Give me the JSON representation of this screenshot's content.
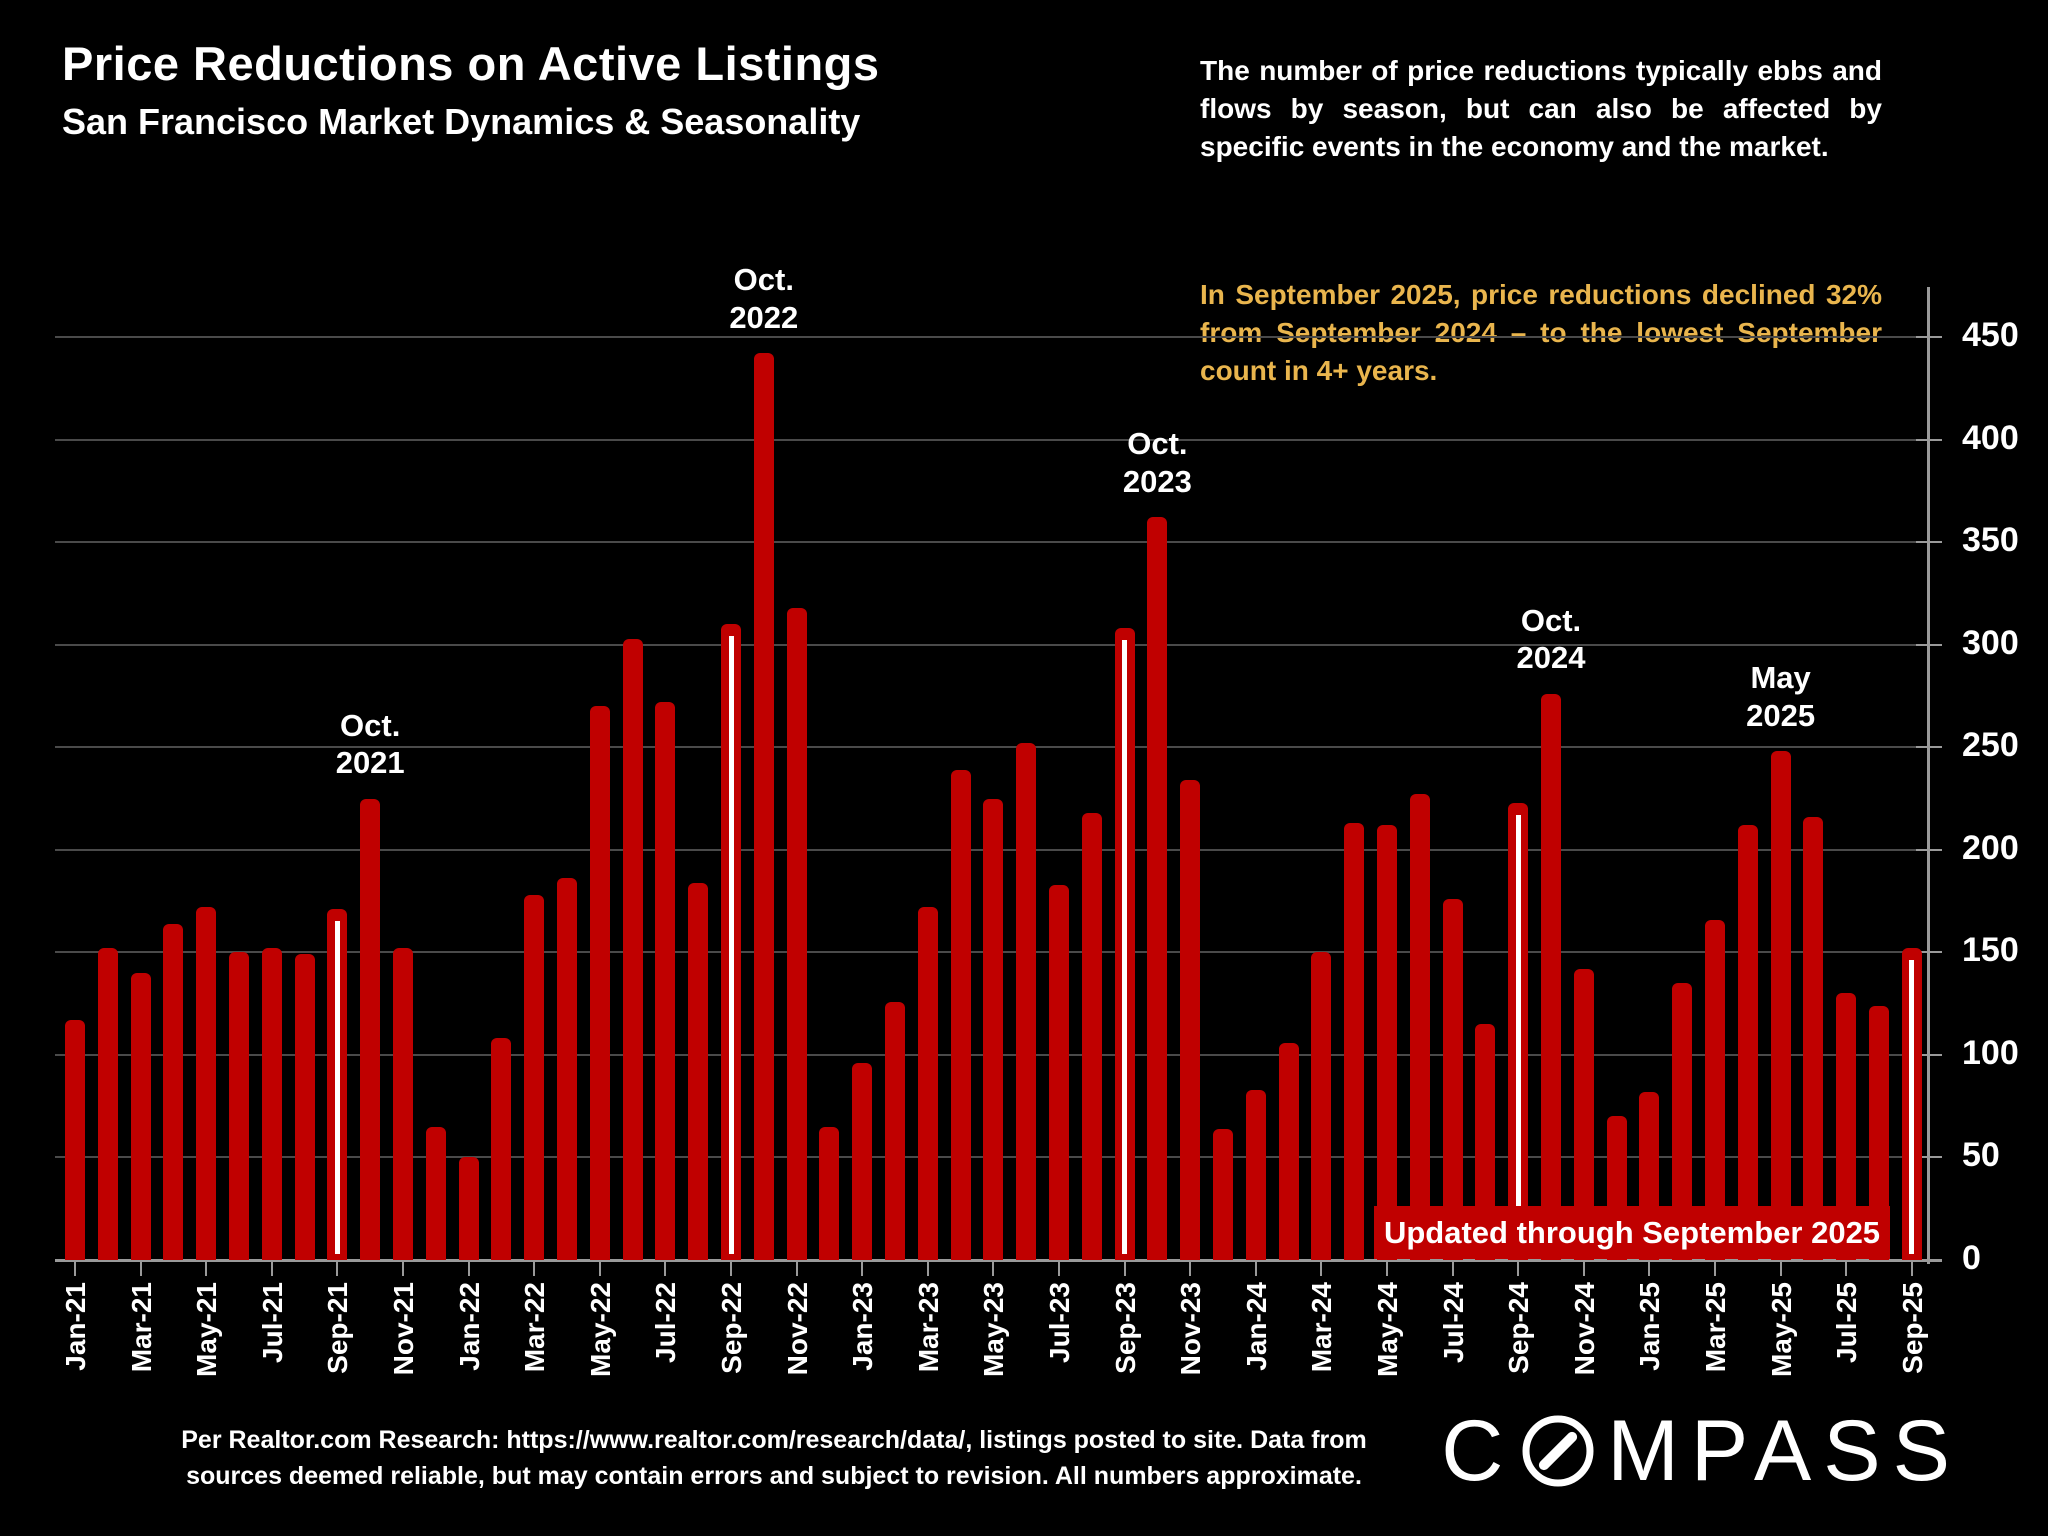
{
  "header": {
    "title": "Price Reductions on Active Listings",
    "subtitle": "San Francisco Market Dynamics & Seasonality"
  },
  "commentary": {
    "white": "The number of price reductions typically ebbs and flows by season, but can also be affected by specific events in the economy and the market.",
    "gold": "In September 2025, price reductions declined 32% from September 2024 – to the lowest September count in 4+ years."
  },
  "banner": {
    "label": "Updated through September 2025"
  },
  "footer": {
    "line1": "Per Realtor.com Research:  https://www.realtor.com/research/data/, listings posted to site. Data from",
    "line2": "sources deemed reliable, but may contain errors and subject to revision. All numbers approximate."
  },
  "logo": {
    "first": "C",
    "rest": "MPASS"
  },
  "colors": {
    "background": "#000000",
    "bar": "#C00000",
    "highlight_line": "#FFFFFF",
    "gold_text": "#E9B54D",
    "grid": "#4a4a4a",
    "axis": "#9a9a9a",
    "text": "#FFFFFF"
  },
  "chart_data": {
    "type": "bar",
    "title": "Price Reductions on Active Listings",
    "xlabel": "",
    "ylabel": "",
    "ylim": [
      0,
      450
    ],
    "ytick_step": 50,
    "xlabel_every": 2,
    "grid": true,
    "legend": "none",
    "bar_color": "#C00000",
    "categories": [
      "Jan-21",
      "Feb-21",
      "Mar-21",
      "Apr-21",
      "May-21",
      "Jun-21",
      "Jul-21",
      "Aug-21",
      "Sep-21",
      "Oct-21",
      "Nov-21",
      "Dec-21",
      "Jan-22",
      "Feb-22",
      "Mar-22",
      "Apr-22",
      "May-22",
      "Jun-22",
      "Jul-22",
      "Aug-22",
      "Sep-22",
      "Oct-22",
      "Nov-22",
      "Dec-22",
      "Jan-23",
      "Feb-23",
      "Mar-23",
      "Apr-23",
      "May-23",
      "Jun-23",
      "Jul-23",
      "Aug-23",
      "Sep-23",
      "Oct-23",
      "Nov-23",
      "Dec-23",
      "Jan-24",
      "Feb-24",
      "Mar-24",
      "Apr-24",
      "May-24",
      "Jun-24",
      "Jul-24",
      "Aug-24",
      "Sep-24",
      "Oct-24",
      "Nov-24",
      "Dec-24",
      "Jan-25",
      "Feb-25",
      "Mar-25",
      "Apr-25",
      "May-25",
      "Jun-25",
      "Jul-25",
      "Aug-25",
      "Sep-25"
    ],
    "values": [
      117,
      152,
      140,
      164,
      172,
      150,
      152,
      149,
      171,
      225,
      152,
      65,
      50,
      108,
      178,
      186,
      270,
      303,
      272,
      184,
      310,
      442,
      318,
      65,
      96,
      126,
      172,
      239,
      225,
      252,
      183,
      218,
      308,
      362,
      234,
      64,
      83,
      106,
      150,
      213,
      212,
      227,
      176,
      115,
      223,
      276,
      142,
      70,
      82,
      135,
      166,
      212,
      248,
      216,
      130,
      124,
      152
    ],
    "highlighted_months": [
      "Sep-21",
      "Sep-22",
      "Sep-23",
      "Sep-24",
      "Sep-25"
    ],
    "annotations": [
      {
        "month": "Oct-21",
        "lines": [
          "Oct.",
          "2021"
        ]
      },
      {
        "month": "Oct-22",
        "lines": [
          "Oct.",
          "2022"
        ]
      },
      {
        "month": "Oct-23",
        "lines": [
          "Oct.",
          "2023"
        ]
      },
      {
        "month": "Oct-24",
        "lines": [
          "Oct.",
          "2024"
        ]
      },
      {
        "month": "May-25",
        "lines": [
          "May",
          "2025"
        ]
      }
    ]
  }
}
